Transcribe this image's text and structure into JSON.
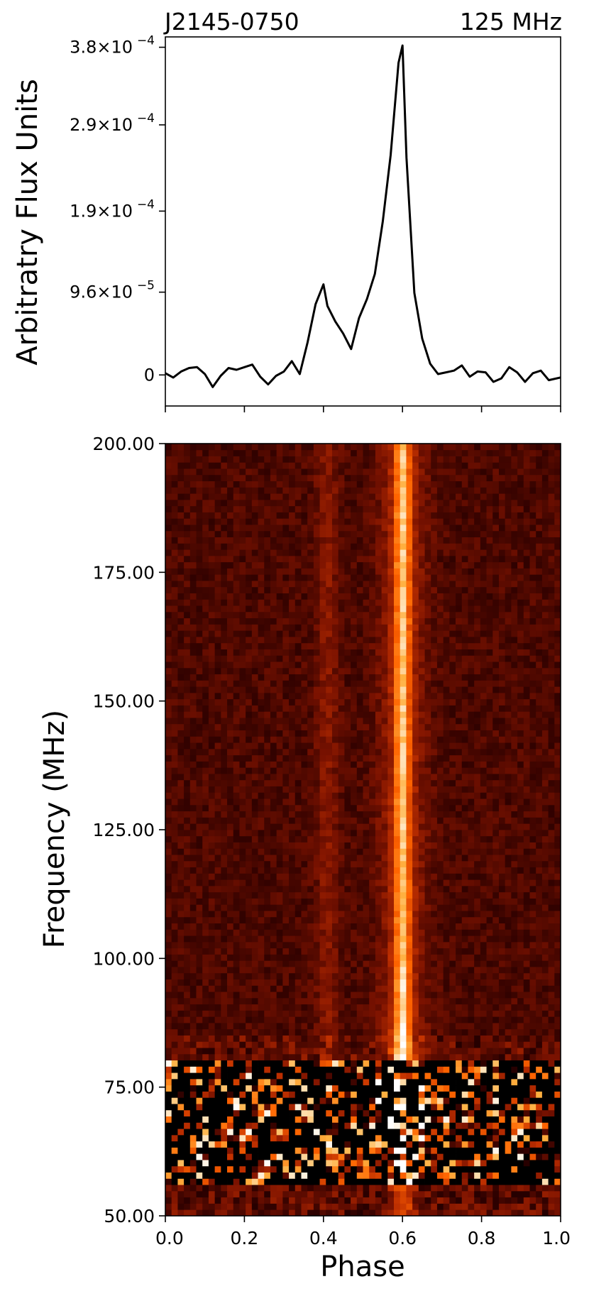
{
  "figure": {
    "source_name": "J2145-0750",
    "frequency_label": "125 MHz",
    "colormap": [
      "#000000",
      "#2a0000",
      "#7a1200",
      "#c03000",
      "#ff6400",
      "#ffb040",
      "#ffffff"
    ],
    "line_color": "#000000"
  },
  "chart_data": [
    {
      "type": "line",
      "title": "",
      "xlabel": "",
      "ylabel": "Arbitratry Flux Units",
      "xlim": [
        0.0,
        1.0
      ],
      "ylim": [
        -3.6e-05,
        0.000392
      ],
      "yticks": [
        {
          "value": 0,
          "label": "0"
        },
        {
          "value": 9.6e-05,
          "label": "9.6×10",
          "exp": "−5"
        },
        {
          "value": 0.00019,
          "label": "1.9×10",
          "exp": "−4"
        },
        {
          "value": 0.00029,
          "label": "2.9×10",
          "exp": "−4"
        },
        {
          "value": 0.00038,
          "label": "3.8×10",
          "exp": "−4"
        }
      ],
      "xticks": [
        0.0,
        0.2,
        0.4,
        0.6,
        0.8,
        1.0
      ],
      "series": [
        {
          "x": [
            0.0,
            0.02,
            0.04,
            0.06,
            0.08,
            0.1,
            0.12,
            0.14,
            0.16,
            0.18,
            0.2,
            0.22,
            0.24,
            0.26,
            0.28,
            0.3,
            0.32,
            0.34,
            0.36,
            0.38,
            0.4,
            0.41,
            0.43,
            0.45,
            0.47,
            0.49,
            0.51,
            0.53,
            0.55,
            0.57,
            0.59,
            0.6,
            0.61,
            0.63,
            0.65,
            0.67,
            0.69,
            0.71,
            0.73,
            0.75,
            0.77,
            0.79,
            0.81,
            0.83,
            0.85,
            0.87,
            0.89,
            0.91,
            0.93,
            0.95,
            0.97,
            1.0
          ],
          "y": [
            2e-06,
            -3e-06,
            4e-06,
            8e-06,
            9e-06,
            1e-06,
            -1.4e-05,
            -1e-06,
            8e-06,
            6e-06,
            9e-06,
            1.2e-05,
            -2e-06,
            -1.1e-05,
            -1e-06,
            4e-06,
            1.6e-05,
            1e-06,
            3.8e-05,
            8.2e-05,
            0.000105,
            8e-05,
            6.2e-05,
            4.8e-05,
            3e-05,
            6.6e-05,
            8.8e-05,
            0.000117,
            0.000178,
            0.000255,
            0.000362,
            0.000382,
            0.000252,
            9.5e-05,
            4.2e-05,
            1.3e-05,
            1e-06,
            3e-06,
            5e-06,
            1.1e-05,
            -2e-06,
            4e-06,
            3e-06,
            -8e-06,
            -4e-06,
            9e-06,
            3e-06,
            -8e-06,
            2e-06,
            5e-06,
            -6e-06,
            -3e-06
          ]
        }
      ]
    },
    {
      "type": "heatmap",
      "title": "",
      "xlabel": "Phase",
      "ylabel": "Frequency (MHz)",
      "xlim": [
        0.0,
        1.0
      ],
      "ylim": [
        50.0,
        200.0
      ],
      "xticks": [
        {
          "value": 0.0,
          "label": "0.0"
        },
        {
          "value": 0.2,
          "label": "0.2"
        },
        {
          "value": 0.4,
          "label": "0.4"
        },
        {
          "value": 0.6,
          "label": "0.6"
        },
        {
          "value": 0.8,
          "label": "0.8"
        },
        {
          "value": 1.0,
          "label": "1.0"
        }
      ],
      "yticks": [
        {
          "value": 50,
          "label": "50.00"
        },
        {
          "value": 75,
          "label": "75.00"
        },
        {
          "value": 100,
          "label": "100.00"
        },
        {
          "value": 125,
          "label": "125.00"
        },
        {
          "value": 150,
          "label": "150.00"
        },
        {
          "value": 175,
          "label": "175.00"
        },
        {
          "value": 200,
          "label": "200.00"
        }
      ],
      "n_phase_bins": 64,
      "n_freq_channels": 124,
      "main_component_phase": 0.6,
      "secondary_component_phase": 0.41,
      "noisy_band_mhz": [
        56,
        80
      ]
    }
  ]
}
